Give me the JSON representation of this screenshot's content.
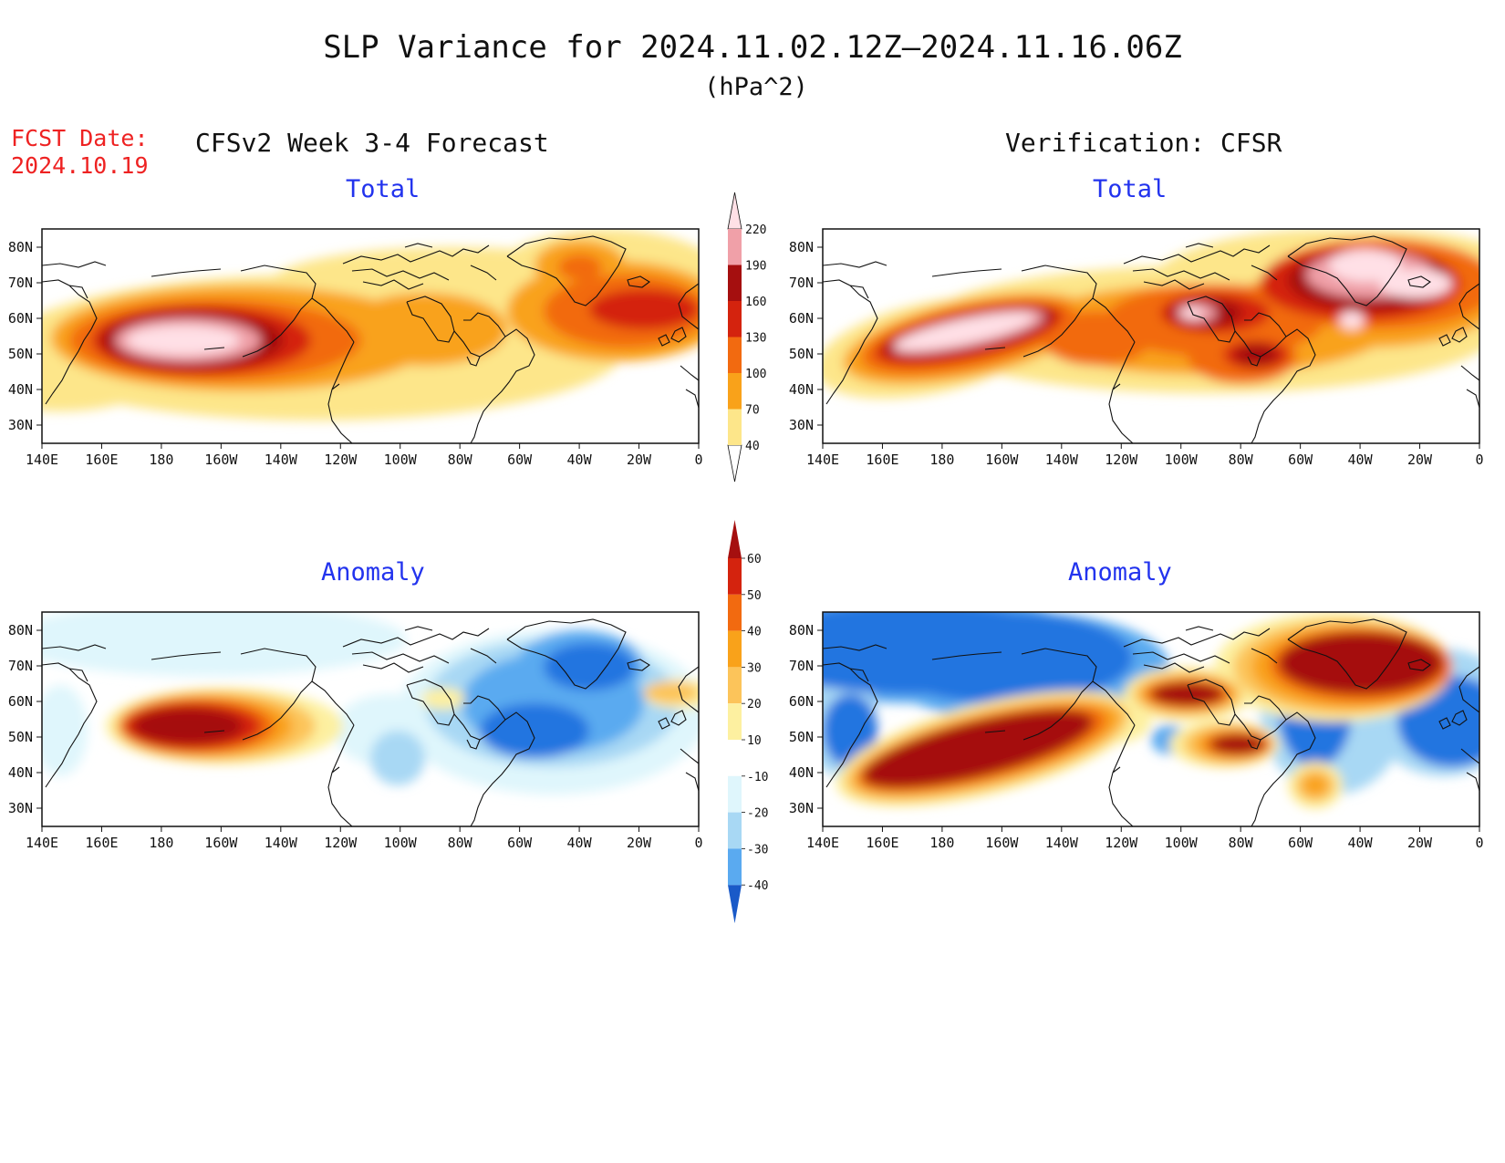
{
  "title": "SLP Variance for 2024.11.02.12Z–2024.11.16.06Z",
  "units": "(hPa^2)",
  "forecast_date": {
    "label": "FCST Date:",
    "value": "2024.10.19"
  },
  "left_column_title": "CFSv2 Week 3-4 Forecast",
  "right_column_title": "Verification: CFSR",
  "panel_titles": {
    "total": "Total",
    "anomaly": "Anomaly"
  },
  "lat_labels": [
    "80N",
    "70N",
    "60N",
    "50N",
    "40N",
    "30N"
  ],
  "lon_labels": [
    "140E",
    "160E",
    "180",
    "160W",
    "140W",
    "120W",
    "100W",
    "80W",
    "60W",
    "40W",
    "20W",
    "0"
  ],
  "map_extent": {
    "lon_west": "140E",
    "lon_east": "0",
    "lat_south": 25,
    "lat_north": 85
  },
  "total_colorbar": {
    "levels": [
      40,
      70,
      100,
      130,
      160,
      190,
      220
    ],
    "colors": [
      "#fde68a",
      "#f9a21a",
      "#f26a10",
      "#d4230e",
      "#a50f0f",
      "#f0a0a8",
      "#ffe0e6"
    ]
  },
  "anomaly_colorbar": {
    "levels": [
      60,
      50,
      40,
      30,
      20,
      10,
      -10,
      -20,
      -30,
      -40
    ],
    "colors_high_to_low": [
      "#a50f0f",
      "#d4230e",
      "#f26a10",
      "#f9a21a",
      "#fcc45a",
      "#fdf0a0",
      "#ffffff",
      "#dff6fc",
      "#a8d8f4",
      "#5aaaf0",
      "#2474e0",
      "#1a5ac8"
    ]
  }
}
